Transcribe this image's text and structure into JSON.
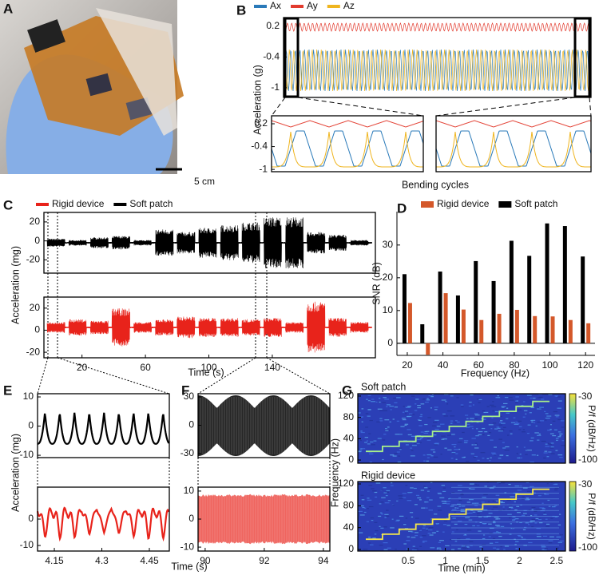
{
  "photo": {
    "panel": "A",
    "scale_bar": "5 cm"
  },
  "chart_data": [
    {
      "type": "line",
      "panel": "B",
      "series": [
        {
          "name": "Ax",
          "color": "#2a7ab9"
        },
        {
          "name": "Ay",
          "color": "#e23b2e"
        },
        {
          "name": "Az",
          "color": "#efb51f"
        }
      ],
      "ylabel": "Acceleration (g)",
      "xlabel": "Bending cycles",
      "ylim": [
        -1.19,
        0.37
      ],
      "yticks": [
        0.2,
        -0.4,
        -1
      ]
    },
    {
      "type": "line",
      "ylim": [
        -1.06,
        0.41
      ],
      "yticks": [
        0.2,
        -0.4,
        -1
      ]
    },
    {
      "type": "line",
      "ylim": [
        -1.06,
        0.41
      ]
    },
    {
      "type": "line",
      "panel": "C",
      "series": [
        {
          "name": "Rigid device",
          "color": "#e8231b"
        },
        {
          "name": "Soft patch",
          "color": "#000000"
        }
      ],
      "ylabel": "Acceleration (mg)",
      "ylim": [
        -34,
        30
      ],
      "yticks": [
        20,
        0,
        -20
      ]
    },
    {
      "type": "line",
      "ylim": [
        -25,
        30
      ],
      "yticks": [
        20,
        0,
        -20
      ],
      "xlim": [
        -4,
        205
      ],
      "xticks": [
        20,
        60,
        100,
        140
      ],
      "xlabel": "Time (s)"
    },
    {
      "type": "bar",
      "panel": "D",
      "x": [
        20,
        30,
        40,
        50,
        60,
        70,
        80,
        90,
        100,
        110,
        120
      ],
      "series": [
        {
          "name": "Rigid device",
          "color": "#d4582a",
          "values": [
            12.3,
            -3.5,
            15.3,
            10.3,
            7.1,
            9,
            10.2,
            8.3,
            8.2,
            7.1,
            6.1
          ]
        },
        {
          "name": "Soft patch",
          "color": "#000000",
          "values": [
            21.1,
            5.8,
            21.9,
            14.6,
            25.1,
            19,
            31.3,
            26.7,
            36.6,
            35.8,
            26.5
          ]
        }
      ],
      "ylabel": "SNR (dB)",
      "xlabel": "Frequency (Hz)",
      "ylim": [
        -3.7,
        40.2
      ],
      "yticks": [
        0,
        10,
        20,
        30
      ],
      "xlim": [
        14.2,
        125.3
      ],
      "xticks": [
        20,
        40,
        60,
        80,
        100,
        120
      ]
    },
    {
      "type": "line",
      "panel": "E",
      "color": "#000000",
      "ylabel": "Acceleration (mg)",
      "ylim": [
        -10.8,
        11.1
      ],
      "yticks": [
        10,
        0,
        -10
      ]
    },
    {
      "type": "line",
      "color": "#e8231b",
      "ylim": [
        -12.1,
        12.1
      ],
      "yticks": [
        0,
        -10
      ],
      "xlim": [
        4.097,
        4.513
      ],
      "xticks": [
        4.15,
        4.3,
        4.45
      ]
    },
    {
      "type": "line",
      "panel": "F",
      "color": "#000000",
      "ylim": [
        -34.2,
        33.4
      ],
      "yticks": [
        30,
        0,
        -30
      ]
    },
    {
      "type": "line",
      "color": "#e8231b",
      "ylim": [
        -11.4,
        11.4
      ],
      "yticks": [
        10,
        0,
        -10
      ],
      "xlim": [
        89.76,
        94.22
      ],
      "xticks": [
        90,
        92,
        94
      ],
      "xlabel": "Time (s)"
    },
    {
      "type": "heatmap",
      "panel": "G",
      "title": "Soft patch",
      "ylabel": "Frequency (Hz)",
      "ylim": [
        -5.9,
        124.4
      ],
      "yticks": [
        0,
        40,
        80,
        120
      ],
      "clim": [
        -100,
        -30
      ],
      "cticks": [
        -30,
        -100
      ],
      "clabel": "P/f (dB/Hz)"
    },
    {
      "type": "heatmap",
      "title": "Rigid device",
      "ylim": [
        -2.9,
        124.4
      ],
      "yticks": [
        0,
        40,
        80,
        120
      ],
      "xlim": [
        -0.18,
        2.62
      ],
      "xticks": [
        0.5,
        1,
        1.5,
        2,
        2.5
      ],
      "xlabel": "Time (min)",
      "clim": [
        -100,
        -30
      ],
      "cticks": [
        -30,
        -100
      ],
      "clabel": "P/f (dB/Hz)"
    }
  ]
}
